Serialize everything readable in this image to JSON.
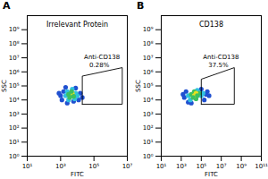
{
  "chart_data": [
    {
      "type": "scatter",
      "panel_label": "A",
      "title": "Irrelevant Protein",
      "x_label": "FITC",
      "y_label": "SSC",
      "log": true,
      "xlim": [
        10,
        10000000
      ],
      "xticks": [
        {
          "value": 10,
          "label": "10¹"
        },
        {
          "value": 1000,
          "label": "10³"
        },
        {
          "value": 100000,
          "label": "10⁵"
        },
        {
          "value": 10000000,
          "label": "10⁷"
        }
      ],
      "ylim": [
        1,
        10000000000
      ],
      "yticks": [
        {
          "value": 1,
          "label": "10⁰"
        },
        {
          "value": 10,
          "label": "10¹"
        },
        {
          "value": 100,
          "label": "10²"
        },
        {
          "value": 1000,
          "label": "10³"
        },
        {
          "value": 10000,
          "label": "10⁴"
        },
        {
          "value": 100000,
          "label": "10⁵"
        },
        {
          "value": 1000000,
          "label": "10⁶"
        },
        {
          "value": 10000000,
          "label": "10⁷"
        },
        {
          "value": 100000000,
          "label": "10⁸"
        },
        {
          "value": 1000000000,
          "label": "10⁹"
        }
      ],
      "x": [
        1000,
        1500,
        15000,
        12000,
        1200,
        8000,
        2000,
        20000,
        800,
        6000,
        2500,
        2000,
        8000,
        7000,
        2500,
        10000,
        5000,
        3000,
        4000,
        5000,
        3000,
        6000,
        4500,
        3500
      ],
      "y": [
        20000,
        40000,
        30000,
        10000,
        10000,
        70000,
        80000,
        15000,
        30000,
        8000,
        6000,
        20000,
        30000,
        12000,
        40000,
        20000,
        60000,
        10000,
        20000,
        30000,
        25000,
        18000,
        40000,
        15000
      ],
      "colors": [
        "#2050d0",
        "#2050d0",
        "#2050d0",
        "#2050d0",
        "#2050d0",
        "#2050d0",
        "#2050d0",
        "#2050d0",
        "#2050d0",
        "#2050d0",
        "#2050d0",
        "#30c0e0",
        "#30c0e0",
        "#30c0e0",
        "#30c0e0",
        "#30c0e0",
        "#30c0e0",
        "#30c0e0",
        "#3cc060",
        "#e8e020",
        "#3cc060",
        "#3cc060",
        "#3cc060",
        "#3cc060"
      ],
      "gate": {
        "name": "Anti-CD138",
        "value": 0.28,
        "value_label": "0.28%",
        "x": [
          20000,
          20000,
          5000000,
          5000000
        ],
        "y": [
          5000,
          500000,
          2000000,
          5000
        ]
      }
    },
    {
      "type": "scatter",
      "panel_label": "B",
      "title": "CD138",
      "x_label": "FITC",
      "y_label": "SSC",
      "log": true,
      "xlim": [
        10,
        100000000000
      ],
      "xticks": [
        {
          "value": 10,
          "label": "10¹"
        },
        {
          "value": 1000,
          "label": "10³"
        },
        {
          "value": 100000,
          "label": "10⁵"
        },
        {
          "value": 10000000,
          "label": "10⁷"
        },
        {
          "value": 1000000000,
          "label": "10⁹"
        },
        {
          "value": 100000000000,
          "label": "10¹¹"
        }
      ],
      "ylim": [
        1,
        10000000000
      ],
      "yticks": [
        {
          "value": 1,
          "label": "10⁰"
        },
        {
          "value": 10,
          "label": "10¹"
        },
        {
          "value": 100,
          "label": "10²"
        },
        {
          "value": 1000,
          "label": "10³"
        },
        {
          "value": 10000,
          "label": "10⁴"
        },
        {
          "value": 100000,
          "label": "10⁵"
        },
        {
          "value": 1000000,
          "label": "10⁶"
        },
        {
          "value": 10000000,
          "label": "10⁷"
        },
        {
          "value": 100000000,
          "label": "10⁸"
        },
        {
          "value": 1000000000,
          "label": "10⁹"
        }
      ],
      "x": [
        2000,
        3000,
        300000,
        200000,
        100000,
        5000,
        600000,
        1500,
        400000,
        10000,
        5000,
        100000,
        8000,
        150000,
        40000,
        10000,
        60000,
        20000,
        30000,
        20000,
        30000,
        15000,
        40000
      ],
      "y": [
        15000,
        40000,
        25000,
        10000,
        60000,
        7000,
        20000,
        25000,
        40000,
        6000,
        20000,
        20000,
        10000,
        30000,
        50000,
        25000,
        30000,
        40000,
        12000,
        20000,
        30000,
        15000,
        20000
      ],
      "colors": [
        "#2050d0",
        "#2050d0",
        "#2050d0",
        "#2050d0",
        "#2050d0",
        "#2050d0",
        "#2050d0",
        "#2050d0",
        "#2050d0",
        "#2050d0",
        "#30c0e0",
        "#30c0e0",
        "#30c0e0",
        "#30c0e0",
        "#30c0e0",
        "#3cc060",
        "#3cc060",
        "#3cc060",
        "#3cc060",
        "#e8e020",
        "#e8e020",
        "#3cc060",
        "#3cc060"
      ],
      "gate": {
        "name": "Anti-CD138",
        "value": 37.5,
        "value_label": "37.5%",
        "x": [
          100000,
          100000,
          200000000,
          200000000
        ],
        "y": [
          5000,
          300000,
          2000000,
          5000
        ]
      }
    }
  ]
}
